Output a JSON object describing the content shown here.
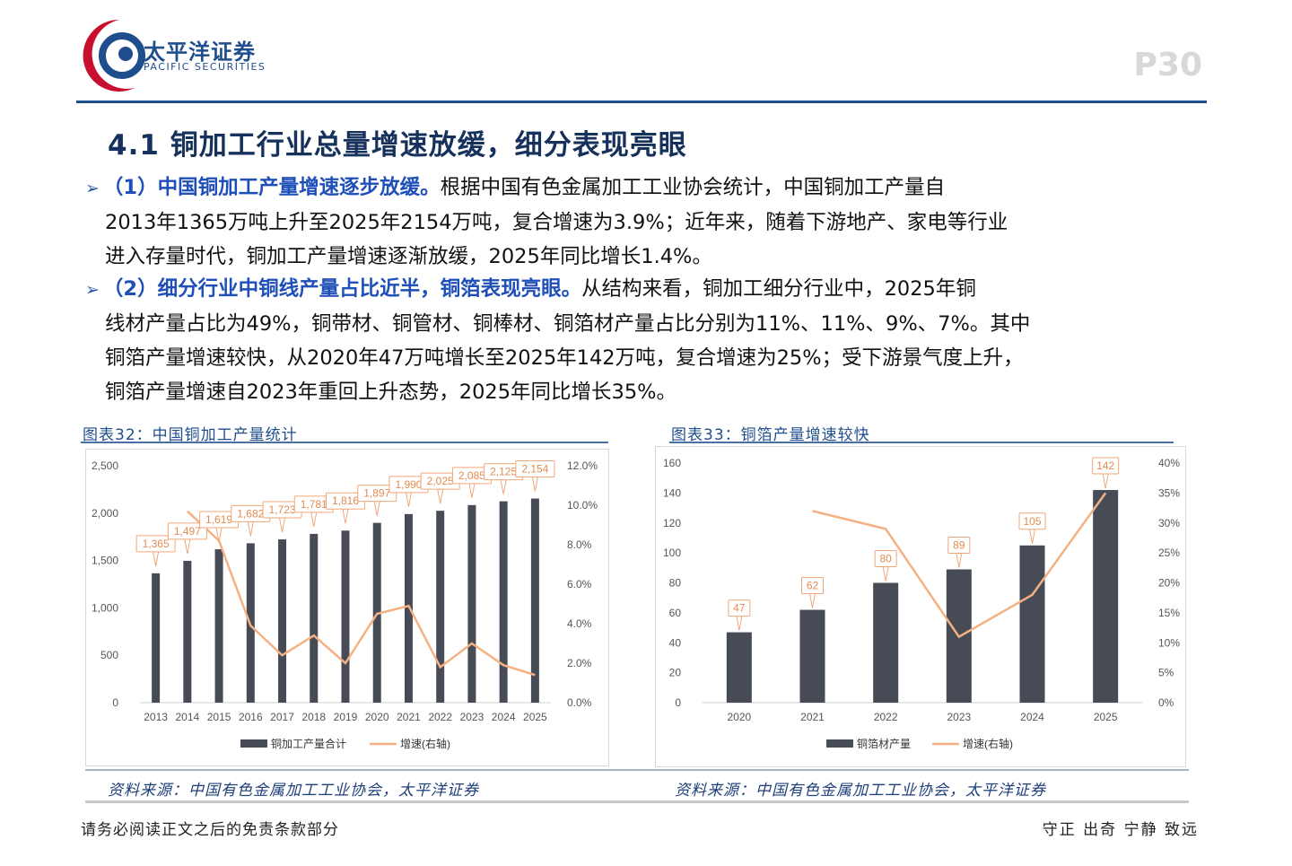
{
  "header": {
    "logo_cn": "太平洋证券",
    "logo_en": "PACIFIC SECURITIES",
    "page_number": "P30",
    "colors": {
      "brand_blue": "#1f4e8c",
      "brand_red": "#c8102e"
    }
  },
  "title": "4.1 铜加工行业总量增速放缓，细分表现亮眼",
  "paragraphs": [
    {
      "arrow": "➢",
      "lead": "（1）中国铜加工产量增速逐步放缓。",
      "line1_rest": "根据中国有色金属加工工业协会统计，中国铜加工产量自",
      "lines": [
        "2013年1365万吨上升至2025年2154万吨，复合增速为3.9%；近年来，随着下游地产、家电等行业",
        "进入存量时代，铜加工产量增速逐渐放缓，2025年同比增长1.4%。"
      ]
    },
    {
      "arrow": "➢",
      "lead": "（2）细分行业中铜线产量占比近半，铜箔表现亮眼。",
      "line1_rest": "从结构来看，铜加工细分行业中，2025年铜",
      "lines": [
        "线材产量占比为49%，铜带材、铜管材、铜棒材、铜箔材产量占比分别为11%、11%、9%、7%。其中",
        "铜箔产量增速较快，从2020年47万吨增长至2025年142万吨，复合增速为25%；受下游景气度上升，",
        "铜箔产量增速自2023年重回上升态势，2025年同比增长35%。"
      ]
    }
  ],
  "captions": [
    "图表32：中国铜加工产量统计",
    "图表33：铜箔产量增速较快"
  ],
  "sources": [
    "资料来源：中国有色金属加工工业协会，太平洋证券",
    "资料来源：中国有色金属加工工业协会，太平洋证券"
  ],
  "footer": {
    "left": "请务必阅读正文之后的免责条款部分",
    "right": "守正 出奇 宁静 致远"
  },
  "chart_data": [
    {
      "type": "bar",
      "categories": [
        "2013",
        "2014",
        "2015",
        "2016",
        "2017",
        "2018",
        "2019",
        "2020",
        "2021",
        "2022",
        "2023",
        "2024",
        "2025"
      ],
      "series": [
        {
          "name": "铜加工产量合计",
          "axis": "left",
          "type": "bar",
          "values": [
            1365,
            1497,
            1619,
            1682,
            1723,
            1781,
            1816,
            1897,
            1990,
            2025,
            2085,
            2125,
            2154
          ],
          "labels": [
            "1,365",
            "1,497",
            "1,619",
            "1,682",
            "1,723",
            "1,781",
            "1,816",
            "1,897",
            "1,990",
            "2,025",
            "2,085",
            "2,125",
            "2,154"
          ]
        },
        {
          "name": "增速(右轴)",
          "axis": "right",
          "type": "line",
          "values": [
            null,
            9.7,
            8.2,
            3.9,
            2.4,
            3.4,
            2.0,
            4.5,
            4.9,
            1.8,
            3.0,
            1.9,
            1.4
          ]
        }
      ],
      "ylim_left": [
        0,
        2500
      ],
      "yticks_left": [
        "0",
        "500",
        "1,000",
        "1,500",
        "2,000",
        "2,500"
      ],
      "ylim_right": [
        0,
        12
      ],
      "yticks_right": [
        "0.0%",
        "2.0%",
        "4.0%",
        "6.0%",
        "8.0%",
        "10.0%",
        "12.0%"
      ],
      "legend": "bottom",
      "grid": false,
      "colors": {
        "bar": "#474b55",
        "line": "#f5b183",
        "label_border": "#f2a77a"
      }
    },
    {
      "type": "bar",
      "categories": [
        "2020",
        "2021",
        "2022",
        "2023",
        "2024",
        "2025"
      ],
      "series": [
        {
          "name": "铜箔材产量",
          "axis": "left",
          "type": "bar",
          "values": [
            47,
            62,
            80,
            89,
            105,
            142
          ],
          "labels": [
            "47",
            "62",
            "80",
            "89",
            "105",
            "142"
          ]
        },
        {
          "name": "增速(右轴)",
          "axis": "right",
          "type": "line",
          "values": [
            null,
            32,
            29,
            11,
            18,
            35
          ]
        }
      ],
      "ylim_left": [
        0,
        160
      ],
      "yticks_left": [
        "0",
        "20",
        "40",
        "60",
        "80",
        "100",
        "120",
        "140",
        "160"
      ],
      "ylim_right": [
        0,
        40
      ],
      "yticks_right": [
        "0%",
        "5%",
        "10%",
        "15%",
        "20%",
        "25%",
        "30%",
        "35%",
        "40%"
      ],
      "legend": "bottom",
      "grid": false,
      "colors": {
        "bar": "#474b55",
        "line": "#f5b183",
        "label_border": "#f2a77a"
      }
    }
  ]
}
